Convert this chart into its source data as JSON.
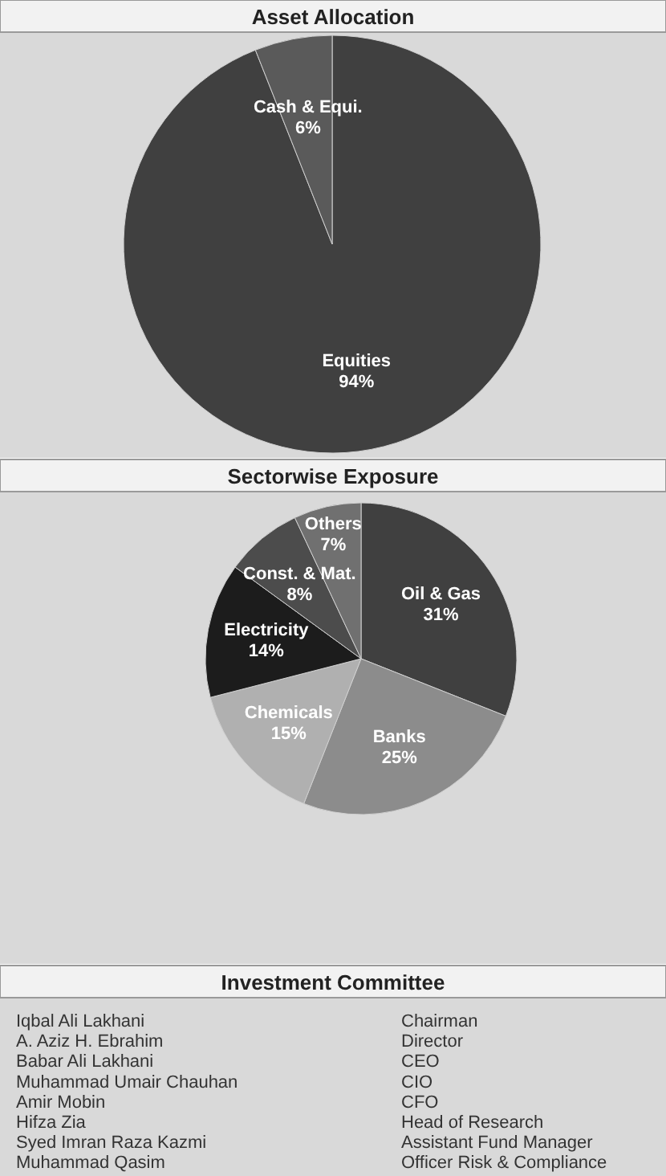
{
  "chart_data": [
    {
      "type": "pie",
      "title": "Asset Allocation",
      "categories": [
        "Equities",
        "Cash & Equi."
      ],
      "values": [
        94,
        6
      ],
      "colors": [
        "#404040",
        "#5a5a5a"
      ],
      "value_labels": [
        "94%",
        "6%"
      ]
    },
    {
      "type": "pie",
      "title": "Sectorwise Exposure",
      "categories": [
        "Oil & Gas",
        "Banks",
        "Chemicals",
        "Electricity",
        "Const. & Mat.",
        "Others"
      ],
      "values": [
        31,
        25,
        15,
        14,
        8,
        7
      ],
      "colors": [
        "#404040",
        "#8c8c8c",
        "#b0b0b0",
        "#1c1c1c",
        "#4c4c4c",
        "#707070"
      ],
      "value_labels": [
        "31%",
        "25%",
        "15%",
        "14%",
        "8%",
        "7%"
      ]
    },
    {
      "type": "other",
      "title": "Investment Committee",
      "annotations": [
        "Iqbal Ali Lakhani",
        "Chairman",
        "A. Aziz H. Ebrahim",
        "Director",
        "Babar Ali Lakhani",
        "CEO",
        "Muhammad Umair Chauhan",
        "CIO",
        "Amir Mobin",
        "CFO",
        "Hifza Zia",
        "Head of Research",
        "Syed Imran Raza Kazmi",
        "Assistant Fund Manager",
        "Muhammad Qasim",
        "Officer Risk & Compliance"
      ]
    }
  ]
}
